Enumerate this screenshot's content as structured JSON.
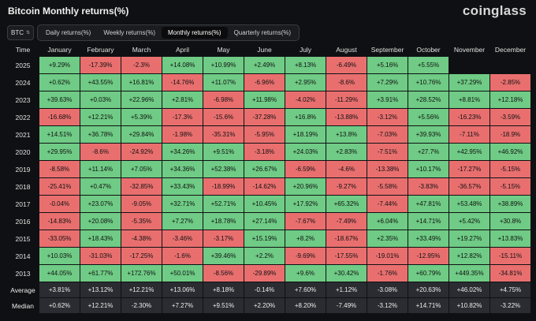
{
  "header": {
    "title": "Bitcoin Monthly returns(%)",
    "logo": "coinglass"
  },
  "controls": {
    "asset": "BTC",
    "tabs": [
      {
        "label": "Daily returns(%)",
        "active": false
      },
      {
        "label": "Weekly returns(%)",
        "active": false
      },
      {
        "label": "Monthly returns(%)",
        "active": true
      },
      {
        "label": "Quarterly returns(%)",
        "active": false
      }
    ]
  },
  "colors": {
    "positive": "#6fcb85",
    "negative": "#e96f6f",
    "stat": "#2b2c31"
  },
  "table": {
    "headers": [
      "Time",
      "January",
      "February",
      "March",
      "April",
      "May",
      "June",
      "July",
      "August",
      "September",
      "October",
      "November",
      "December"
    ],
    "rows": [
      {
        "year": "2025",
        "values": [
          "+9.29%",
          "-17.39%",
          "-2.3%",
          "+14.08%",
          "+10.99%",
          "+2.49%",
          "+8.13%",
          "-6.49%",
          "+5.16%",
          "+5.55%",
          "",
          ""
        ]
      },
      {
        "year": "2024",
        "values": [
          "+0.62%",
          "+43.55%",
          "+16.81%",
          "-14.76%",
          "+11.07%",
          "-6.96%",
          "+2.95%",
          "-8.6%",
          "+7.29%",
          "+10.76%",
          "+37.29%",
          "-2.85%"
        ]
      },
      {
        "year": "2023",
        "values": [
          "+39.63%",
          "+0.03%",
          "+22.96%",
          "+2.81%",
          "-6.98%",
          "+11.98%",
          "-4.02%",
          "-11.29%",
          "+3.91%",
          "+28.52%",
          "+8.81%",
          "+12.18%"
        ]
      },
      {
        "year": "2022",
        "values": [
          "-16.68%",
          "+12.21%",
          "+5.39%",
          "-17.3%",
          "-15.6%",
          "-37.28%",
          "+16.8%",
          "-13.88%",
          "-3.12%",
          "+5.56%",
          "-16.23%",
          "-3.59%"
        ]
      },
      {
        "year": "2021",
        "values": [
          "+14.51%",
          "+36.78%",
          "+29.84%",
          "-1.98%",
          "-35.31%",
          "-5.95%",
          "+18.19%",
          "+13.8%",
          "-7.03%",
          "+39.93%",
          "-7.11%",
          "-18.9%"
        ]
      },
      {
        "year": "2020",
        "values": [
          "+29.95%",
          "-8.6%",
          "-24.92%",
          "+34.26%",
          "+9.51%",
          "-3.18%",
          "+24.03%",
          "+2.83%",
          "-7.51%",
          "+27.7%",
          "+42.95%",
          "+46.92%"
        ]
      },
      {
        "year": "2019",
        "values": [
          "-8.58%",
          "+11.14%",
          "+7.05%",
          "+34.36%",
          "+52.38%",
          "+26.67%",
          "-6.59%",
          "-4.6%",
          "-13.38%",
          "+10.17%",
          "-17.27%",
          "-5.15%"
        ]
      },
      {
        "year": "2018",
        "values": [
          "-25.41%",
          "+0.47%",
          "-32.85%",
          "+33.43%",
          "-18.99%",
          "-14.62%",
          "+20.96%",
          "-9.27%",
          "-5.58%",
          "-3.83%",
          "-36.57%",
          "-5.15%"
        ]
      },
      {
        "year": "2017",
        "values": [
          "-0.04%",
          "+23.07%",
          "-9.05%",
          "+32.71%",
          "+52.71%",
          "+10.45%",
          "+17.92%",
          "+65.32%",
          "-7.44%",
          "+47.81%",
          "+53.48%",
          "+38.89%"
        ]
      },
      {
        "year": "2016",
        "values": [
          "-14.83%",
          "+20.08%",
          "-5.35%",
          "+7.27%",
          "+18.78%",
          "+27.14%",
          "-7.67%",
          "-7.49%",
          "+6.04%",
          "+14.71%",
          "+5.42%",
          "+30.8%"
        ]
      },
      {
        "year": "2015",
        "values": [
          "-33.05%",
          "+18.43%",
          "-4.38%",
          "-3.46%",
          "-3.17%",
          "+15.19%",
          "+8.2%",
          "-18.67%",
          "+2.35%",
          "+33.49%",
          "+19.27%",
          "+13.83%"
        ]
      },
      {
        "year": "2014",
        "values": [
          "+10.03%",
          "-31.03%",
          "-17.25%",
          "-1.6%",
          "+39.46%",
          "+2.2%",
          "-9.69%",
          "-17.55%",
          "-19.01%",
          "-12.95%",
          "+12.82%",
          "-15.11%"
        ]
      },
      {
        "year": "2013",
        "values": [
          "+44.05%",
          "+61.77%",
          "+172.76%",
          "+50.01%",
          "-8.56%",
          "-29.89%",
          "+9.6%",
          "+30.42%",
          "-1.76%",
          "+60.79%",
          "+449.35%",
          "-34.81%"
        ]
      }
    ],
    "stats": [
      {
        "label": "Average",
        "values": [
          "+3.81%",
          "+13.12%",
          "+12.21%",
          "+13.06%",
          "+8.18%",
          "-0.14%",
          "+7.60%",
          "+1.12%",
          "-3.08%",
          "+20.63%",
          "+46.02%",
          "+4.75%"
        ]
      },
      {
        "label": "Median",
        "values": [
          "+0.62%",
          "+12.21%",
          "-2.30%",
          "+7.27%",
          "+9.51%",
          "+2.20%",
          "+8.20%",
          "-7.49%",
          "-3.12%",
          "+14.71%",
          "+10.82%",
          "-3.22%"
        ]
      }
    ]
  }
}
